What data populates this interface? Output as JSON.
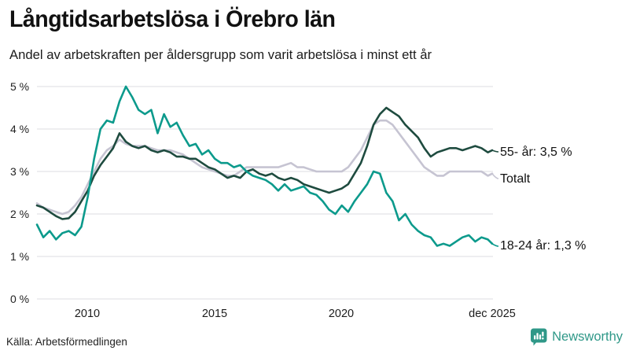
{
  "header": {
    "title": "Långtidsarbetslösa i Örebro län",
    "subtitle": "Andel av arbetskraften per åldersgrupp som varit arbetslösa i minst ett år"
  },
  "footer": {
    "source": "Källa: Arbetsförmedlingen",
    "brand": "Newsworthy"
  },
  "colors": {
    "series_55": "#1e4b3f",
    "series_total": "#c6c4d2",
    "series_18_24": "#0c9a8c",
    "gridline": "#e4e4e8",
    "brand_teal": "#2f9888",
    "text": "#111111"
  },
  "chart_data": {
    "type": "line",
    "title": "Långtidsarbetslösa i Örebro län",
    "subtitle": "Andel av arbetskraften per åldersgrupp som varit arbetslösa i minst ett år",
    "unit": "%",
    "grid": true,
    "legend_position": "right-end-labels",
    "x_axis": {
      "domain": [
        2008,
        2025.92
      ],
      "ticks": [
        {
          "label": "2010",
          "x": 2010
        },
        {
          "label": "2015",
          "x": 2015
        },
        {
          "label": "2020",
          "x": 2020
        },
        {
          "label": "dec 2025",
          "x": 2025.92
        }
      ]
    },
    "y_axis": {
      "domain": [
        0,
        5
      ],
      "ticks": [
        {
          "label": "5 %",
          "value": 5
        },
        {
          "label": "4 %",
          "value": 4
        },
        {
          "label": "3 %",
          "value": 3
        },
        {
          "label": "2 %",
          "value": 2
        },
        {
          "label": "1 %",
          "value": 1
        },
        {
          "label": "0 %",
          "value": 0
        }
      ]
    },
    "x": [
      2008,
      2008.25,
      2008.5,
      2008.75,
      2009,
      2009.25,
      2009.5,
      2009.75,
      2010,
      2010.25,
      2010.5,
      2010.75,
      2011,
      2011.25,
      2011.5,
      2011.75,
      2012,
      2012.25,
      2012.5,
      2012.75,
      2013,
      2013.25,
      2013.5,
      2013.75,
      2014,
      2014.25,
      2014.5,
      2014.75,
      2015,
      2015.25,
      2015.5,
      2015.75,
      2016,
      2016.25,
      2016.5,
      2016.75,
      2017,
      2017.25,
      2017.5,
      2017.75,
      2018,
      2018.25,
      2018.5,
      2018.75,
      2019,
      2019.25,
      2019.5,
      2019.75,
      2020,
      2020.25,
      2020.5,
      2020.75,
      2021,
      2021.25,
      2021.5,
      2021.75,
      2022,
      2022.25,
      2022.5,
      2022.75,
      2023,
      2023.25,
      2023.5,
      2023.75,
      2024,
      2024.25,
      2024.5,
      2024.75,
      2025,
      2025.25,
      2025.5,
      2025.75,
      2025.92
    ],
    "series": [
      {
        "name": "Totalt",
        "end_label": "Totalt",
        "color": "#c6c4d2",
        "values": [
          2.25,
          2.15,
          2.1,
          2.05,
          2.0,
          2.05,
          2.2,
          2.4,
          2.7,
          3.0,
          3.3,
          3.5,
          3.6,
          3.75,
          3.65,
          3.6,
          3.6,
          3.6,
          3.55,
          3.5,
          3.5,
          3.5,
          3.45,
          3.4,
          3.3,
          3.2,
          3.1,
          3.05,
          3.0,
          2.95,
          2.9,
          2.9,
          3.0,
          3.1,
          3.1,
          3.1,
          3.1,
          3.1,
          3.1,
          3.15,
          3.2,
          3.1,
          3.1,
          3.05,
          3.0,
          3.0,
          3.0,
          3.0,
          3.0,
          3.1,
          3.3,
          3.5,
          3.8,
          4.1,
          4.2,
          4.2,
          4.1,
          3.9,
          3.7,
          3.5,
          3.3,
          3.1,
          3.0,
          2.9,
          2.9,
          3.0,
          3.0,
          3.0,
          3.0,
          3.0,
          3.0,
          2.9,
          2.95
        ]
      },
      {
        "name": "55- år",
        "end_label": "55- år: 3,5 %",
        "end_value": "3,5 %",
        "color": "#1e4b3f",
        "values": [
          2.2,
          2.15,
          2.05,
          1.95,
          1.88,
          1.9,
          2.05,
          2.3,
          2.55,
          2.9,
          3.15,
          3.35,
          3.55,
          3.9,
          3.7,
          3.6,
          3.55,
          3.6,
          3.5,
          3.45,
          3.5,
          3.45,
          3.35,
          3.35,
          3.3,
          3.3,
          3.2,
          3.1,
          3.05,
          2.95,
          2.85,
          2.9,
          2.85,
          3.0,
          3.05,
          2.95,
          2.9,
          2.95,
          2.85,
          2.8,
          2.85,
          2.8,
          2.7,
          2.65,
          2.6,
          2.55,
          2.5,
          2.55,
          2.6,
          2.7,
          2.95,
          3.2,
          3.6,
          4.1,
          4.35,
          4.5,
          4.4,
          4.3,
          4.1,
          3.95,
          3.8,
          3.55,
          3.35,
          3.45,
          3.5,
          3.55,
          3.55,
          3.5,
          3.55,
          3.6,
          3.55,
          3.45,
          3.5
        ]
      },
      {
        "name": "18-24 år",
        "end_label": "18-24 år: 1,3 %",
        "end_value": "1,3 %",
        "color": "#0c9a8c",
        "values": [
          1.75,
          1.45,
          1.6,
          1.4,
          1.55,
          1.6,
          1.5,
          1.7,
          2.4,
          3.3,
          4.0,
          4.2,
          4.15,
          4.65,
          5.0,
          4.75,
          4.45,
          4.35,
          4.45,
          3.9,
          4.35,
          4.05,
          4.15,
          3.85,
          3.6,
          3.65,
          3.4,
          3.5,
          3.3,
          3.2,
          3.2,
          3.1,
          3.15,
          3.0,
          2.9,
          2.85,
          2.8,
          2.7,
          2.55,
          2.7,
          2.55,
          2.6,
          2.65,
          2.5,
          2.45,
          2.3,
          2.1,
          2.0,
          2.2,
          2.05,
          2.3,
          2.5,
          2.7,
          3.0,
          2.95,
          2.5,
          2.3,
          1.85,
          2.0,
          1.75,
          1.6,
          1.5,
          1.45,
          1.25,
          1.3,
          1.25,
          1.35,
          1.45,
          1.5,
          1.35,
          1.45,
          1.4,
          1.3
        ]
      }
    ]
  }
}
